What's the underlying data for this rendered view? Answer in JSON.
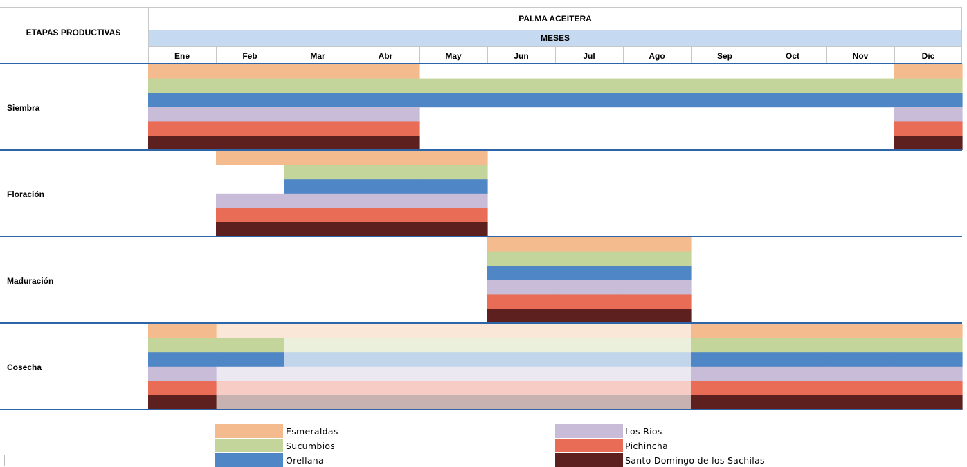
{
  "chart_data": {
    "type": "gantt",
    "title": "PALMA ACEITERA",
    "row_header": "ETAPAS PRODUCTIVAS",
    "subtitle": "MESES",
    "months": [
      "Ene",
      "Feb",
      "Mar",
      "Abr",
      "May",
      "Jun",
      "Jul",
      "Ago",
      "Sep",
      "Oct",
      "Nov",
      "Dic"
    ],
    "series": [
      {
        "name": "Esmeraldas",
        "color": "#F4BB8E"
      },
      {
        "name": "Sucumbios",
        "color": "#C3D59B"
      },
      {
        "name": "Orellana",
        "color": "#4F86C6"
      },
      {
        "name": "Los Rios",
        "color": "#C9BCD9"
      },
      {
        "name": "Pichincha",
        "color": "#E96C57"
      },
      {
        "name": "Santo Domingo de los Sachilas",
        "color": "#5E1F1F"
      }
    ],
    "stages": [
      {
        "name": "Siembra",
        "periods": [
          {
            "series": 0,
            "months": [
              1,
              2,
              3,
              4,
              12
            ]
          },
          {
            "series": 1,
            "months": [
              1,
              2,
              3,
              4,
              5,
              6,
              7,
              8,
              9,
              10,
              11,
              12
            ]
          },
          {
            "series": 2,
            "months": [
              1,
              2,
              3,
              4,
              5,
              6,
              7,
              8,
              9,
              10,
              11,
              12
            ]
          },
          {
            "series": 3,
            "months": [
              1,
              2,
              3,
              4,
              12
            ]
          },
          {
            "series": 4,
            "months": [
              1,
              2,
              3,
              4,
              12
            ]
          },
          {
            "series": 5,
            "months": [
              1,
              2,
              3,
              4,
              12
            ]
          }
        ]
      },
      {
        "name": "Floración",
        "periods": [
          {
            "series": 0,
            "months": [
              2,
              3,
              4,
              5
            ]
          },
          {
            "series": 1,
            "months": [
              3,
              4,
              5
            ]
          },
          {
            "series": 2,
            "months": [
              3,
              4,
              5
            ]
          },
          {
            "series": 3,
            "months": [
              2,
              3,
              4,
              5
            ]
          },
          {
            "series": 4,
            "months": [
              2,
              3,
              4,
              5
            ]
          },
          {
            "series": 5,
            "months": [
              2,
              3,
              4,
              5
            ]
          }
        ]
      },
      {
        "name": "Maduración",
        "periods": [
          {
            "series": 0,
            "months": [
              6,
              7,
              8
            ]
          },
          {
            "series": 1,
            "months": [
              6,
              7,
              8
            ]
          },
          {
            "series": 2,
            "months": [
              6,
              7,
              8
            ]
          },
          {
            "series": 3,
            "months": [
              6,
              7,
              8
            ]
          },
          {
            "series": 4,
            "months": [
              6,
              7,
              8
            ]
          },
          {
            "series": 5,
            "months": [
              6,
              7,
              8
            ]
          }
        ]
      },
      {
        "name": "Cosecha",
        "periods": [
          {
            "series": 0,
            "months": [
              1,
              9,
              10,
              11,
              12
            ],
            "faded": [
              2,
              3,
              4,
              5,
              6,
              7,
              8
            ]
          },
          {
            "series": 1,
            "months": [
              1,
              2,
              9,
              10,
              11,
              12
            ],
            "faded": [
              3,
              4,
              5,
              6,
              7,
              8
            ]
          },
          {
            "series": 2,
            "months": [
              1,
              2,
              9,
              10,
              11,
              12
            ],
            "faded": [
              3,
              4,
              5,
              6,
              7,
              8
            ]
          },
          {
            "series": 3,
            "months": [
              1,
              9,
              10,
              11,
              12
            ],
            "faded": [
              2,
              3,
              4,
              5,
              6,
              7,
              8
            ]
          },
          {
            "series": 4,
            "months": [
              1,
              9,
              10,
              11,
              12
            ],
            "faded": [
              2,
              3,
              4,
              5,
              6,
              7,
              8
            ]
          },
          {
            "series": 5,
            "months": [
              1,
              9,
              10,
              11,
              12
            ],
            "faded": [
              2,
              3,
              4,
              5,
              6,
              7,
              8
            ]
          }
        ]
      }
    ],
    "header_band_color": "#C5D9F1",
    "stage_divider_color": "#2E64A8"
  }
}
